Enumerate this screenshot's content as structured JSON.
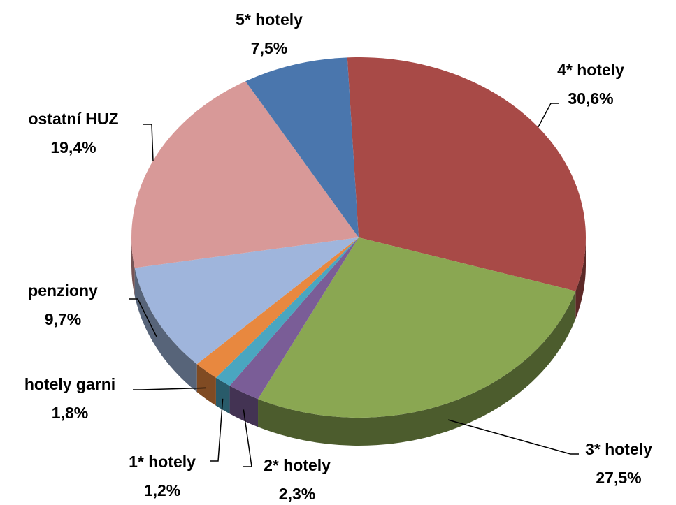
{
  "chart_data": {
    "type": "pie",
    "categories": [
      "4* hotely",
      "3* hotely",
      "2* hotely",
      "1* hotely",
      "hotely garni",
      "penziony",
      "ostatní HUZ",
      "5* hotely"
    ],
    "values": [
      30.6,
      27.5,
      2.3,
      1.2,
      1.8,
      9.7,
      19.4,
      7.5
    ],
    "value_labels": [
      "30,6%",
      "27,5%",
      "2,3%",
      "1,2%",
      "1,8%",
      "9,7%",
      "19,4%",
      "7,5%"
    ],
    "colors": [
      "#a84a47",
      "#8aa752",
      "#7a5d97",
      "#4aa6c0",
      "#e8883f",
      "#9fb5dc",
      "#d89998",
      "#4a76ad"
    ]
  }
}
